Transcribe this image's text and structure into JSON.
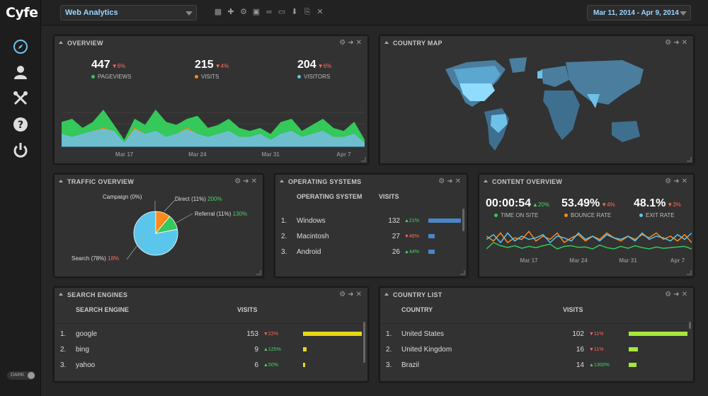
{
  "app": {
    "logo": "Cyfe",
    "dark_label": "DARK"
  },
  "topbar": {
    "dashboard": "Web Analytics",
    "date_range": "Mar 11, 2014 - Apr 9, 2014"
  },
  "icons": [
    "grid-icon",
    "add-icon",
    "gear-icon",
    "image-icon",
    "link-icon",
    "monitor-icon",
    "download-icon",
    "export-icon",
    "close-icon"
  ],
  "colors": {
    "green": "#35c85a",
    "orange": "#ff8a1a",
    "blue": "#5bc6ec",
    "bar_blue": "#4a86c8",
    "bar_yellow": "#e8d817",
    "bar_lime": "#a6e83a",
    "accent": "#9bd6ff"
  },
  "overview": {
    "title": "OVERVIEW",
    "metrics": [
      {
        "value": "447",
        "change": "▼6%",
        "label": "PAGEVIEWS",
        "color": "#35c85a",
        "dir": "down"
      },
      {
        "value": "215",
        "change": "▼4%",
        "label": "VISITS",
        "color": "#ff8a1a",
        "dir": "down"
      },
      {
        "value": "204",
        "change": "▼6%",
        "label": "VISITORS",
        "color": "#5bc6ec",
        "dir": "down"
      }
    ],
    "x_labels": [
      "Mar 17",
      "Mar 24",
      "Mar 31",
      "Apr 7"
    ]
  },
  "country_map": {
    "title": "COUNTRY MAP"
  },
  "traffic": {
    "title": "TRAFFIC OVERVIEW",
    "slices": [
      {
        "label": "Search (78%)",
        "change": "18%",
        "dir": "down",
        "color": "#5bc6ec"
      },
      {
        "label": "Referral (11%)",
        "change": "130%",
        "dir": "up",
        "color": "#ff8a1a"
      },
      {
        "label": "Direct (11%)",
        "change": "200%",
        "dir": "up",
        "color": "#35c85a"
      },
      {
        "label": "Campaign (0%)",
        "change": "",
        "dir": "",
        "color": "#999999"
      }
    ]
  },
  "os": {
    "title": "OPERATING SYSTEMS",
    "col1": "OPERATING SYSTEM",
    "col2": "VISITS",
    "rows": [
      {
        "n": "1.",
        "name": "Windows",
        "visits": "132",
        "change": "▲21%",
        "dir": "up"
      },
      {
        "n": "2.",
        "name": "Macintosh",
        "visits": "27",
        "change": "▼46%",
        "dir": "down"
      },
      {
        "n": "3.",
        "name": "Android",
        "visits": "26",
        "change": "▲44%",
        "dir": "up"
      }
    ]
  },
  "content": {
    "title": "CONTENT OVERVIEW",
    "metrics": [
      {
        "value": "00:00:54",
        "change": "▲20%",
        "label": "TIME ON SITE",
        "color": "#35c85a",
        "dir": "up"
      },
      {
        "value": "53.49%",
        "change": "▼4%",
        "label": "BOUNCE RATE",
        "color": "#ff8a1a",
        "dir": "down"
      },
      {
        "value": "48.1%",
        "change": "▼3%",
        "label": "EXIT RATE",
        "color": "#5bc6ec",
        "dir": "down"
      }
    ],
    "x_labels": [
      "Mar 17",
      "Mar 24",
      "Mar 31",
      "Apr 7"
    ]
  },
  "search": {
    "title": "SEARCH ENGINES",
    "col1": "SEARCH ENGINE",
    "col2": "VISITS",
    "rows": [
      {
        "n": "1.",
        "name": "google",
        "visits": "153",
        "change": "▼22%",
        "dir": "down"
      },
      {
        "n": "2.",
        "name": "bing",
        "visits": "9",
        "change": "▲125%",
        "dir": "up"
      },
      {
        "n": "3.",
        "name": "yahoo",
        "visits": "6",
        "change": "▲50%",
        "dir": "up"
      }
    ]
  },
  "countries": {
    "title": "COUNTRY LIST",
    "col1": "COUNTRY",
    "col2": "VISITS",
    "rows": [
      {
        "n": "1.",
        "name": "United States",
        "visits": "102",
        "change": "▼11%",
        "dir": "down"
      },
      {
        "n": "2.",
        "name": "United Kingdom",
        "visits": "16",
        "change": "▼11%",
        "dir": "down"
      },
      {
        "n": "3.",
        "name": "Brazil",
        "visits": "14",
        "change": "▲1300%",
        "dir": "up"
      }
    ]
  },
  "chart_data": [
    {
      "type": "area",
      "x": [
        "Mar 11",
        "Mar 12",
        "Mar 13",
        "Mar 14",
        "Mar 15",
        "Mar 16",
        "Mar 17",
        "Mar 18",
        "Mar 19",
        "Mar 20",
        "Mar 21",
        "Mar 22",
        "Mar 23",
        "Mar 24",
        "Mar 25",
        "Mar 26",
        "Mar 27",
        "Mar 28",
        "Mar 29",
        "Mar 30",
        "Mar 31",
        "Apr 1",
        "Apr 2",
        "Apr 3",
        "Apr 4",
        "Apr 5",
        "Apr 6",
        "Apr 7",
        "Apr 8",
        "Apr 9"
      ],
      "series": [
        {
          "name": "PAGEVIEWS",
          "values": [
            16,
            18,
            12,
            16,
            24,
            14,
            4,
            18,
            14,
            24,
            16,
            14,
            18,
            20,
            12,
            14,
            18,
            12,
            10,
            12,
            8,
            16,
            18,
            10,
            14,
            18,
            12,
            10,
            16,
            4
          ]
        },
        {
          "name": "VISITS",
          "values": [
            8,
            6,
            8,
            10,
            12,
            10,
            2,
            12,
            8,
            10,
            6,
            8,
            12,
            8,
            6,
            8,
            10,
            6,
            6,
            8,
            4,
            8,
            10,
            6,
            8,
            10,
            6,
            6,
            8,
            2
          ]
        },
        {
          "name": "VISITORS",
          "values": [
            8,
            6,
            8,
            10,
            11,
            10,
            2,
            11,
            8,
            10,
            6,
            8,
            11,
            8,
            6,
            8,
            10,
            6,
            6,
            8,
            4,
            8,
            10,
            6,
            8,
            10,
            6,
            6,
            8,
            2
          ]
        }
      ]
    },
    {
      "type": "line",
      "x": [
        "Mar 11",
        "Mar 12",
        "Mar 13",
        "Mar 14",
        "Mar 15",
        "Mar 16",
        "Mar 17",
        "Mar 18",
        "Mar 19",
        "Mar 20",
        "Mar 21",
        "Mar 22",
        "Mar 23",
        "Mar 24",
        "Mar 25",
        "Mar 26",
        "Mar 27",
        "Mar 28",
        "Mar 29",
        "Mar 30",
        "Mar 31",
        "Apr 1",
        "Apr 2",
        "Apr 3",
        "Apr 4",
        "Apr 5",
        "Apr 6",
        "Apr 7",
        "Apr 8",
        "Apr 9"
      ],
      "series": [
        {
          "name": "TIME ON SITE",
          "values": [
            20,
            40,
            30,
            25,
            30,
            22,
            28,
            24,
            30,
            35,
            20,
            28,
            30,
            25,
            26,
            20,
            32,
            24,
            20,
            28,
            22,
            30,
            24,
            20,
            26,
            22,
            24,
            26,
            28,
            20
          ]
        },
        {
          "name": "BOUNCE RATE",
          "values": [
            60,
            45,
            70,
            40,
            55,
            50,
            75,
            45,
            60,
            50,
            70,
            40,
            55,
            65,
            45,
            60,
            50,
            70,
            55,
            45,
            60,
            50,
            65,
            55,
            70,
            50,
            60,
            45,
            65,
            40
          ]
        },
        {
          "name": "EXIT RATE",
          "values": [
            50,
            65,
            40,
            70,
            45,
            60,
            50,
            55,
            65,
            40,
            60,
            55,
            45,
            70,
            50,
            60,
            45,
            65,
            55,
            50,
            60,
            45,
            70,
            50,
            60,
            55,
            45,
            65,
            50,
            70
          ]
        }
      ]
    },
    {
      "type": "pie",
      "categories": [
        "Search (78%)",
        "Referral (11%)",
        "Direct (11%)",
        "Campaign (0%)"
      ],
      "values": [
        78,
        11,
        11,
        0
      ]
    }
  ]
}
